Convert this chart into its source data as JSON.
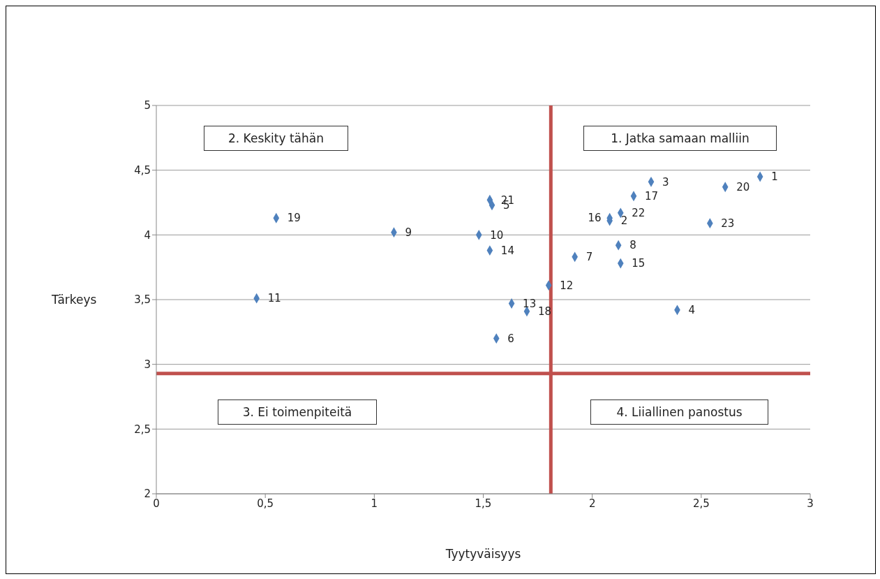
{
  "chart_data": {
    "type": "scatter",
    "xlabel": "Tyytyväisyys",
    "ylabel": "Tärkeys",
    "annotations": [
      "1. Jatka samaan malliin",
      "2. Keskity tähän",
      "3. Ei toimenpiteitä",
      "4. Liiallinen panostus",
      {
        "text": "1",
        "x": 2.77,
        "y": 4.45
      },
      {
        "text": "2",
        "x": 2.08,
        "y": 4.11
      },
      {
        "text": "3",
        "x": 2.27,
        "y": 4.41
      },
      {
        "text": "4",
        "x": 2.39,
        "y": 3.42
      },
      {
        "text": "5",
        "x": 1.54,
        "y": 4.23
      },
      {
        "text": "6",
        "x": 1.56,
        "y": 3.2
      },
      {
        "text": "7",
        "x": 1.92,
        "y": 3.83
      },
      {
        "text": "8",
        "x": 2.12,
        "y": 3.92
      },
      {
        "text": "9",
        "x": 1.09,
        "y": 4.02
      },
      {
        "text": "10",
        "x": 1.48,
        "y": 4.0
      },
      {
        "text": "11",
        "x": 0.46,
        "y": 3.51
      },
      {
        "text": "12",
        "x": 1.8,
        "y": 3.61
      },
      {
        "text": "13",
        "x": 1.63,
        "y": 3.47
      },
      {
        "text": "14",
        "x": 1.53,
        "y": 3.88
      },
      {
        "text": "15",
        "x": 2.13,
        "y": 3.78
      },
      {
        "text": "16",
        "x": 2.08,
        "y": 4.13
      },
      {
        "text": "17",
        "x": 2.19,
        "y": 4.3
      },
      {
        "text": "18",
        "x": 1.7,
        "y": 3.41
      },
      {
        "text": "19",
        "x": 0.55,
        "y": 4.13
      },
      {
        "text": "20",
        "x": 2.61,
        "y": 4.37
      },
      {
        "text": "21",
        "x": 1.53,
        "y": 4.27
      },
      {
        "text": "22",
        "x": 2.13,
        "y": 4.17
      },
      {
        "text": "23",
        "x": 2.54,
        "y": 4.09
      }
    ],
    "xlim": [
      0,
      3
    ],
    "xticks": [
      0,
      {
        "value": 0.5,
        "label": "0,5"
      },
      1,
      {
        "value": 1.5,
        "label": "1,5"
      },
      2,
      {
        "value": 2.5,
        "label": "2,5"
      },
      3
    ],
    "ylim": [
      2,
      5
    ],
    "yticks": [
      2,
      {
        "value": 2.5,
        "label": "2,5"
      },
      3,
      {
        "value": 3.5,
        "label": "3,5"
      },
      4,
      {
        "value": 4.5,
        "label": "4,5"
      },
      5
    ],
    "grid": "y",
    "marker": "diamond",
    "series": [
      {
        "color": "#4f81bd",
        "x": [
          2.77,
          2.08,
          2.27,
          2.39,
          1.54,
          1.56,
          1.92,
          2.12,
          1.09,
          1.48,
          0.46,
          1.8,
          1.63,
          1.53,
          2.13,
          2.08,
          2.19,
          1.7,
          0.55,
          2.61,
          1.53,
          2.13,
          2.54
        ],
        "values": [
          4.45,
          4.11,
          4.41,
          3.42,
          4.23,
          3.2,
          3.83,
          3.92,
          4.02,
          4.0,
          3.51,
          3.61,
          3.47,
          3.88,
          3.78,
          4.13,
          4.3,
          3.41,
          4.13,
          4.37,
          4.27,
          4.17,
          4.09
        ]
      }
    ],
    "ref_lines": [
      {
        "axis": "x",
        "value": 1.81,
        "color": "#c0504d"
      },
      {
        "axis": "y",
        "value": 2.93,
        "color": "#c0504d"
      }
    ]
  }
}
